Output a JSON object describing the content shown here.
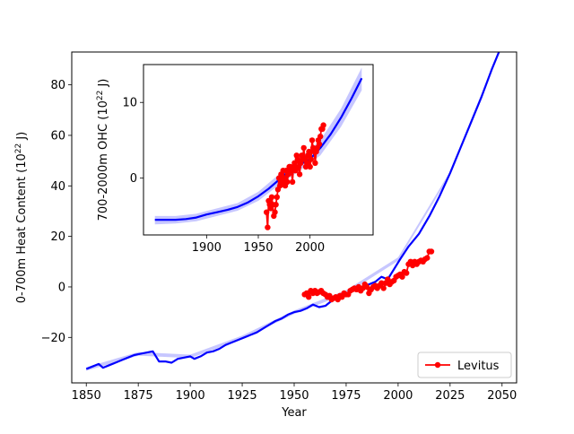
{
  "chart_data": [
    {
      "type": "line",
      "role": "main",
      "xlabel": "Year",
      "ylabel": "0-700m Heat Content (10^22 J)",
      "ylabel_parts": {
        "pre": "0-700m Heat Content (10",
        "sup": "22",
        "post": " J)"
      },
      "xlim": [
        1843,
        2057
      ],
      "ylim": [
        -38,
        93
      ],
      "xticks": [
        1850,
        1875,
        1900,
        1925,
        1950,
        1975,
        2000,
        2025,
        2050
      ],
      "yticks": [
        -20,
        0,
        20,
        40,
        60,
        80
      ],
      "legend": {
        "label": "Levitus",
        "position": "bottom-right"
      },
      "colors": {
        "model": "#0000ff",
        "band": "#9999ff",
        "levitus": "#ff0000"
      },
      "series": [
        {
          "name": "model",
          "style": "line",
          "x": [
            1850,
            1853,
            1856,
            1858,
            1861,
            1864,
            1867,
            1870,
            1873,
            1876,
            1879,
            1882,
            1885,
            1888,
            1891,
            1894,
            1897,
            1900,
            1902,
            1905,
            1908,
            1911,
            1914,
            1917,
            1920,
            1923,
            1926,
            1929,
            1932,
            1935,
            1938,
            1941,
            1944,
            1947,
            1950,
            1953,
            1956,
            1959,
            1962,
            1965,
            1968,
            1971,
            1974,
            1977,
            1980,
            1983,
            1986,
            1989,
            1992,
            1995,
            1998,
            2001,
            2005,
            2010,
            2015,
            2020,
            2025,
            2030,
            2035,
            2040,
            2045,
            2050
          ],
          "y": [
            -32.5,
            -31.5,
            -30.5,
            -32,
            -31,
            -30,
            -29,
            -28,
            -27,
            -26.5,
            -26,
            -25.5,
            -29.5,
            -29.5,
            -30,
            -28.5,
            -28,
            -27.5,
            -28.5,
            -27.5,
            -26,
            -25.5,
            -24.5,
            -23,
            -22,
            -21,
            -20,
            -19,
            -18,
            -16.5,
            -15,
            -13.5,
            -12.5,
            -11,
            -10,
            -9.5,
            -8.5,
            -7,
            -8,
            -7.5,
            -5.5,
            -4,
            -3,
            -2,
            -1,
            0,
            1,
            2,
            4,
            3,
            7,
            11,
            16,
            21,
            28,
            36,
            45,
            55,
            65,
            75,
            86,
            96
          ]
        },
        {
          "name": "model-uncertainty",
          "style": "band",
          "x": [
            1850,
            1875,
            1900,
            1925,
            1950,
            1975,
            2000,
            2025,
            2050
          ],
          "y_low": [
            -33.2,
            -27.2,
            -28.2,
            -20.7,
            -10.7,
            -2.7,
            10.3,
            44.3,
            95.3
          ],
          "y_high": [
            -31.8,
            -25.8,
            -26.8,
            -19.3,
            -9.3,
            -1.3,
            11.7,
            45.7,
            96.7
          ]
        },
        {
          "name": "Levitus",
          "style": "line-markers",
          "x": [
            1955,
            1956,
            1957,
            1958,
            1959,
            1960,
            1961,
            1962,
            1963,
            1964,
            1965,
            1966,
            1967,
            1968,
            1969,
            1970,
            1971,
            1972,
            1973,
            1974,
            1975,
            1976,
            1977,
            1978,
            1979,
            1980,
            1981,
            1982,
            1983,
            1984,
            1985,
            1986,
            1987,
            1988,
            1989,
            1990,
            1991,
            1992,
            1993,
            1994,
            1995,
            1996,
            1997,
            1998,
            1999,
            2000,
            2001,
            2002,
            2003,
            2004,
            2005,
            2006,
            2007,
            2008,
            2009,
            2010,
            2011,
            2012,
            2013,
            2014,
            2015,
            2016
          ],
          "y": [
            -3,
            -2.5,
            -4,
            -1.5,
            -2.5,
            -1.5,
            -2.5,
            -2,
            -1.5,
            -2.5,
            -3,
            -4,
            -3.5,
            -5,
            -4.5,
            -4,
            -5,
            -3.5,
            -4,
            -2.5,
            -3,
            -3,
            -1.5,
            -1,
            -0.5,
            -1,
            0,
            -1.5,
            -0.5,
            1,
            0,
            -2.5,
            -1,
            0,
            0.5,
            -0.5,
            0.5,
            1.5,
            -0.5,
            1.5,
            3,
            1,
            2,
            2.5,
            4,
            4.5,
            5,
            4,
            6,
            5.5,
            9,
            10,
            8.5,
            10,
            9,
            10,
            10.5,
            10,
            11,
            11.5,
            14,
            14
          ]
        }
      ]
    },
    {
      "type": "line",
      "role": "inset",
      "xlabel": "",
      "ylabel": "700-2000m OHC (10^22 J)",
      "ylabel_parts": {
        "pre": "700-2000m OHC (10",
        "sup": "22",
        "post": " J)"
      },
      "xlim": [
        1839,
        2061
      ],
      "ylim": [
        -7.5,
        15
      ],
      "xticks": [
        1900,
        1950,
        2000
      ],
      "yticks": [
        0,
        10
      ],
      "series": [
        {
          "name": "model",
          "style": "line",
          "x": [
            1850,
            1860,
            1870,
            1880,
            1890,
            1900,
            1910,
            1920,
            1930,
            1940,
            1950,
            1960,
            1970,
            1980,
            1990,
            2000,
            2010,
            2020,
            2030,
            2040,
            2050
          ],
          "y": [
            -5.5,
            -5.5,
            -5.5,
            -5.4,
            -5.2,
            -4.8,
            -4.5,
            -4.2,
            -3.8,
            -3.2,
            -2.4,
            -1.4,
            -0.2,
            1.0,
            1.8,
            2.5,
            4.0,
            5.8,
            8.0,
            10.5,
            13.2
          ]
        },
        {
          "name": "model-uncertainty",
          "style": "band",
          "x": [
            1850,
            1870,
            1890,
            1910,
            1930,
            1950,
            1970,
            1990,
            2010,
            2030,
            2050
          ],
          "y_low": [
            -6.1,
            -6.0,
            -5.7,
            -5.0,
            -4.3,
            -3.0,
            -0.9,
            1.0,
            3.0,
            6.8,
            11.6
          ],
          "y_high": [
            -5.0,
            -5.0,
            -4.7,
            -4.0,
            -3.3,
            -1.8,
            0.5,
            2.6,
            5.0,
            9.2,
            14.6
          ]
        },
        {
          "name": "Levitus",
          "style": "line-markers",
          "x": [
            1958,
            1959,
            1960,
            1961,
            1962,
            1963,
            1964,
            1965,
            1966,
            1967,
            1968,
            1969,
            1970,
            1971,
            1972,
            1973,
            1974,
            1975,
            1976,
            1977,
            1978,
            1979,
            1980,
            1981,
            1982,
            1983,
            1984,
            1985,
            1986,
            1987,
            1988,
            1989,
            1990,
            1991,
            1992,
            1993,
            1994,
            1995,
            1996,
            1997,
            1998,
            1999,
            2000,
            2001,
            2002,
            2003,
            2004,
            2005,
            2006,
            2007,
            2008,
            2009,
            2010,
            2011,
            2012,
            2013
          ],
          "y": [
            -4.5,
            -6.5,
            -3,
            -3.5,
            -4,
            -2.5,
            -3.5,
            -5,
            -4.5,
            -3.5,
            -2.5,
            -1.5,
            0,
            -1,
            0.5,
            -0.5,
            1,
            0,
            -1,
            1,
            -0.5,
            0.5,
            1.5,
            1.5,
            1,
            -0.5,
            1.5,
            2,
            1,
            3,
            2.5,
            1.5,
            0.5,
            2,
            3,
            2.5,
            4,
            2.5,
            1.5,
            2,
            3,
            3.5,
            1.5,
            2.5,
            5,
            4,
            3.5,
            2,
            3.5,
            4,
            5,
            4.5,
            5.5,
            6.5,
            6.5,
            7
          ]
        }
      ]
    }
  ]
}
